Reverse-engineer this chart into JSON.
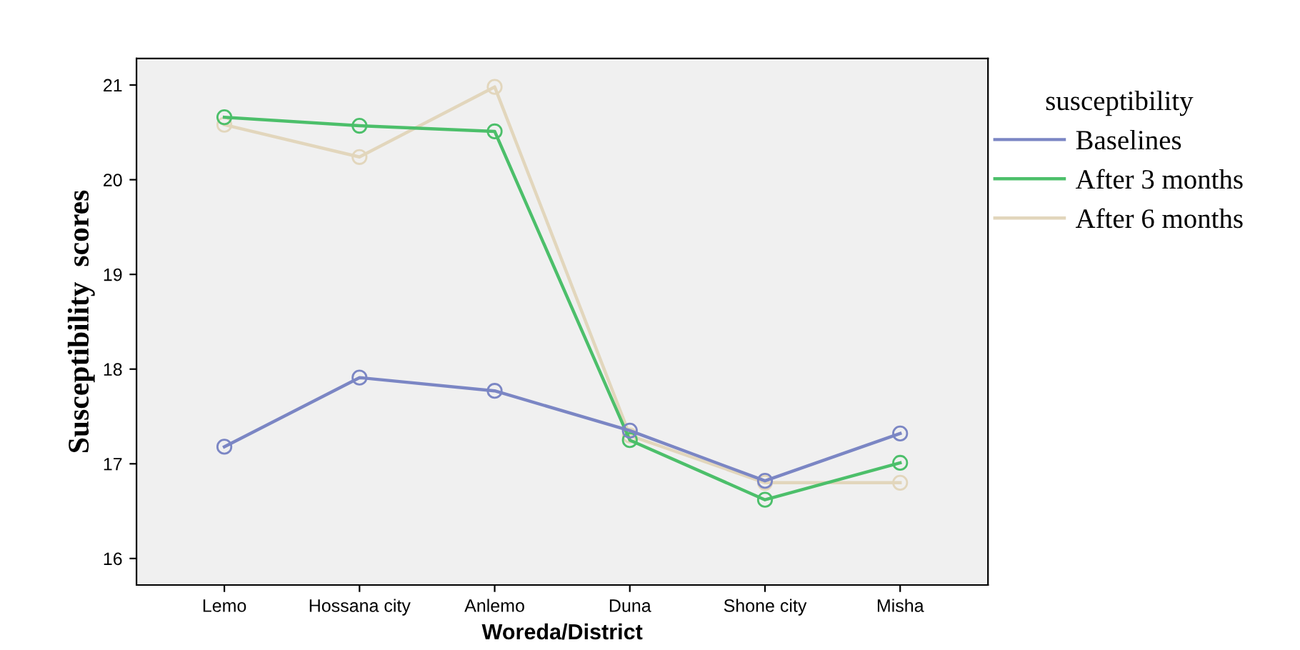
{
  "chart_data": {
    "type": "line",
    "xlabel": "Woreda/District",
    "ylabel": "Susceptibility  scores",
    "legend_title": "susceptibility",
    "categories": [
      "Lemo",
      "Hossana city",
      "Anlemo",
      "Duna",
      "Shone city",
      "Misha"
    ],
    "series": [
      {
        "name": "Baselines",
        "color": "#7b86c4",
        "values": [
          17.18,
          17.91,
          17.77,
          17.35,
          16.82,
          17.32
        ]
      },
      {
        "name": "After 3 months",
        "color": "#4cbf6a",
        "values": [
          20.66,
          20.57,
          20.51,
          17.25,
          16.62,
          17.01
        ]
      },
      {
        "name": "After 6 months",
        "color": "#e2d6bc",
        "values": [
          20.58,
          20.24,
          20.98,
          17.3,
          16.8,
          16.8
        ]
      }
    ],
    "ylim": [
      15.72,
      21.28
    ],
    "yticks": [
      16,
      17,
      18,
      19,
      20,
      21
    ],
    "grid": false,
    "legend": "right",
    "marker": "circle",
    "line_style": "solid"
  }
}
